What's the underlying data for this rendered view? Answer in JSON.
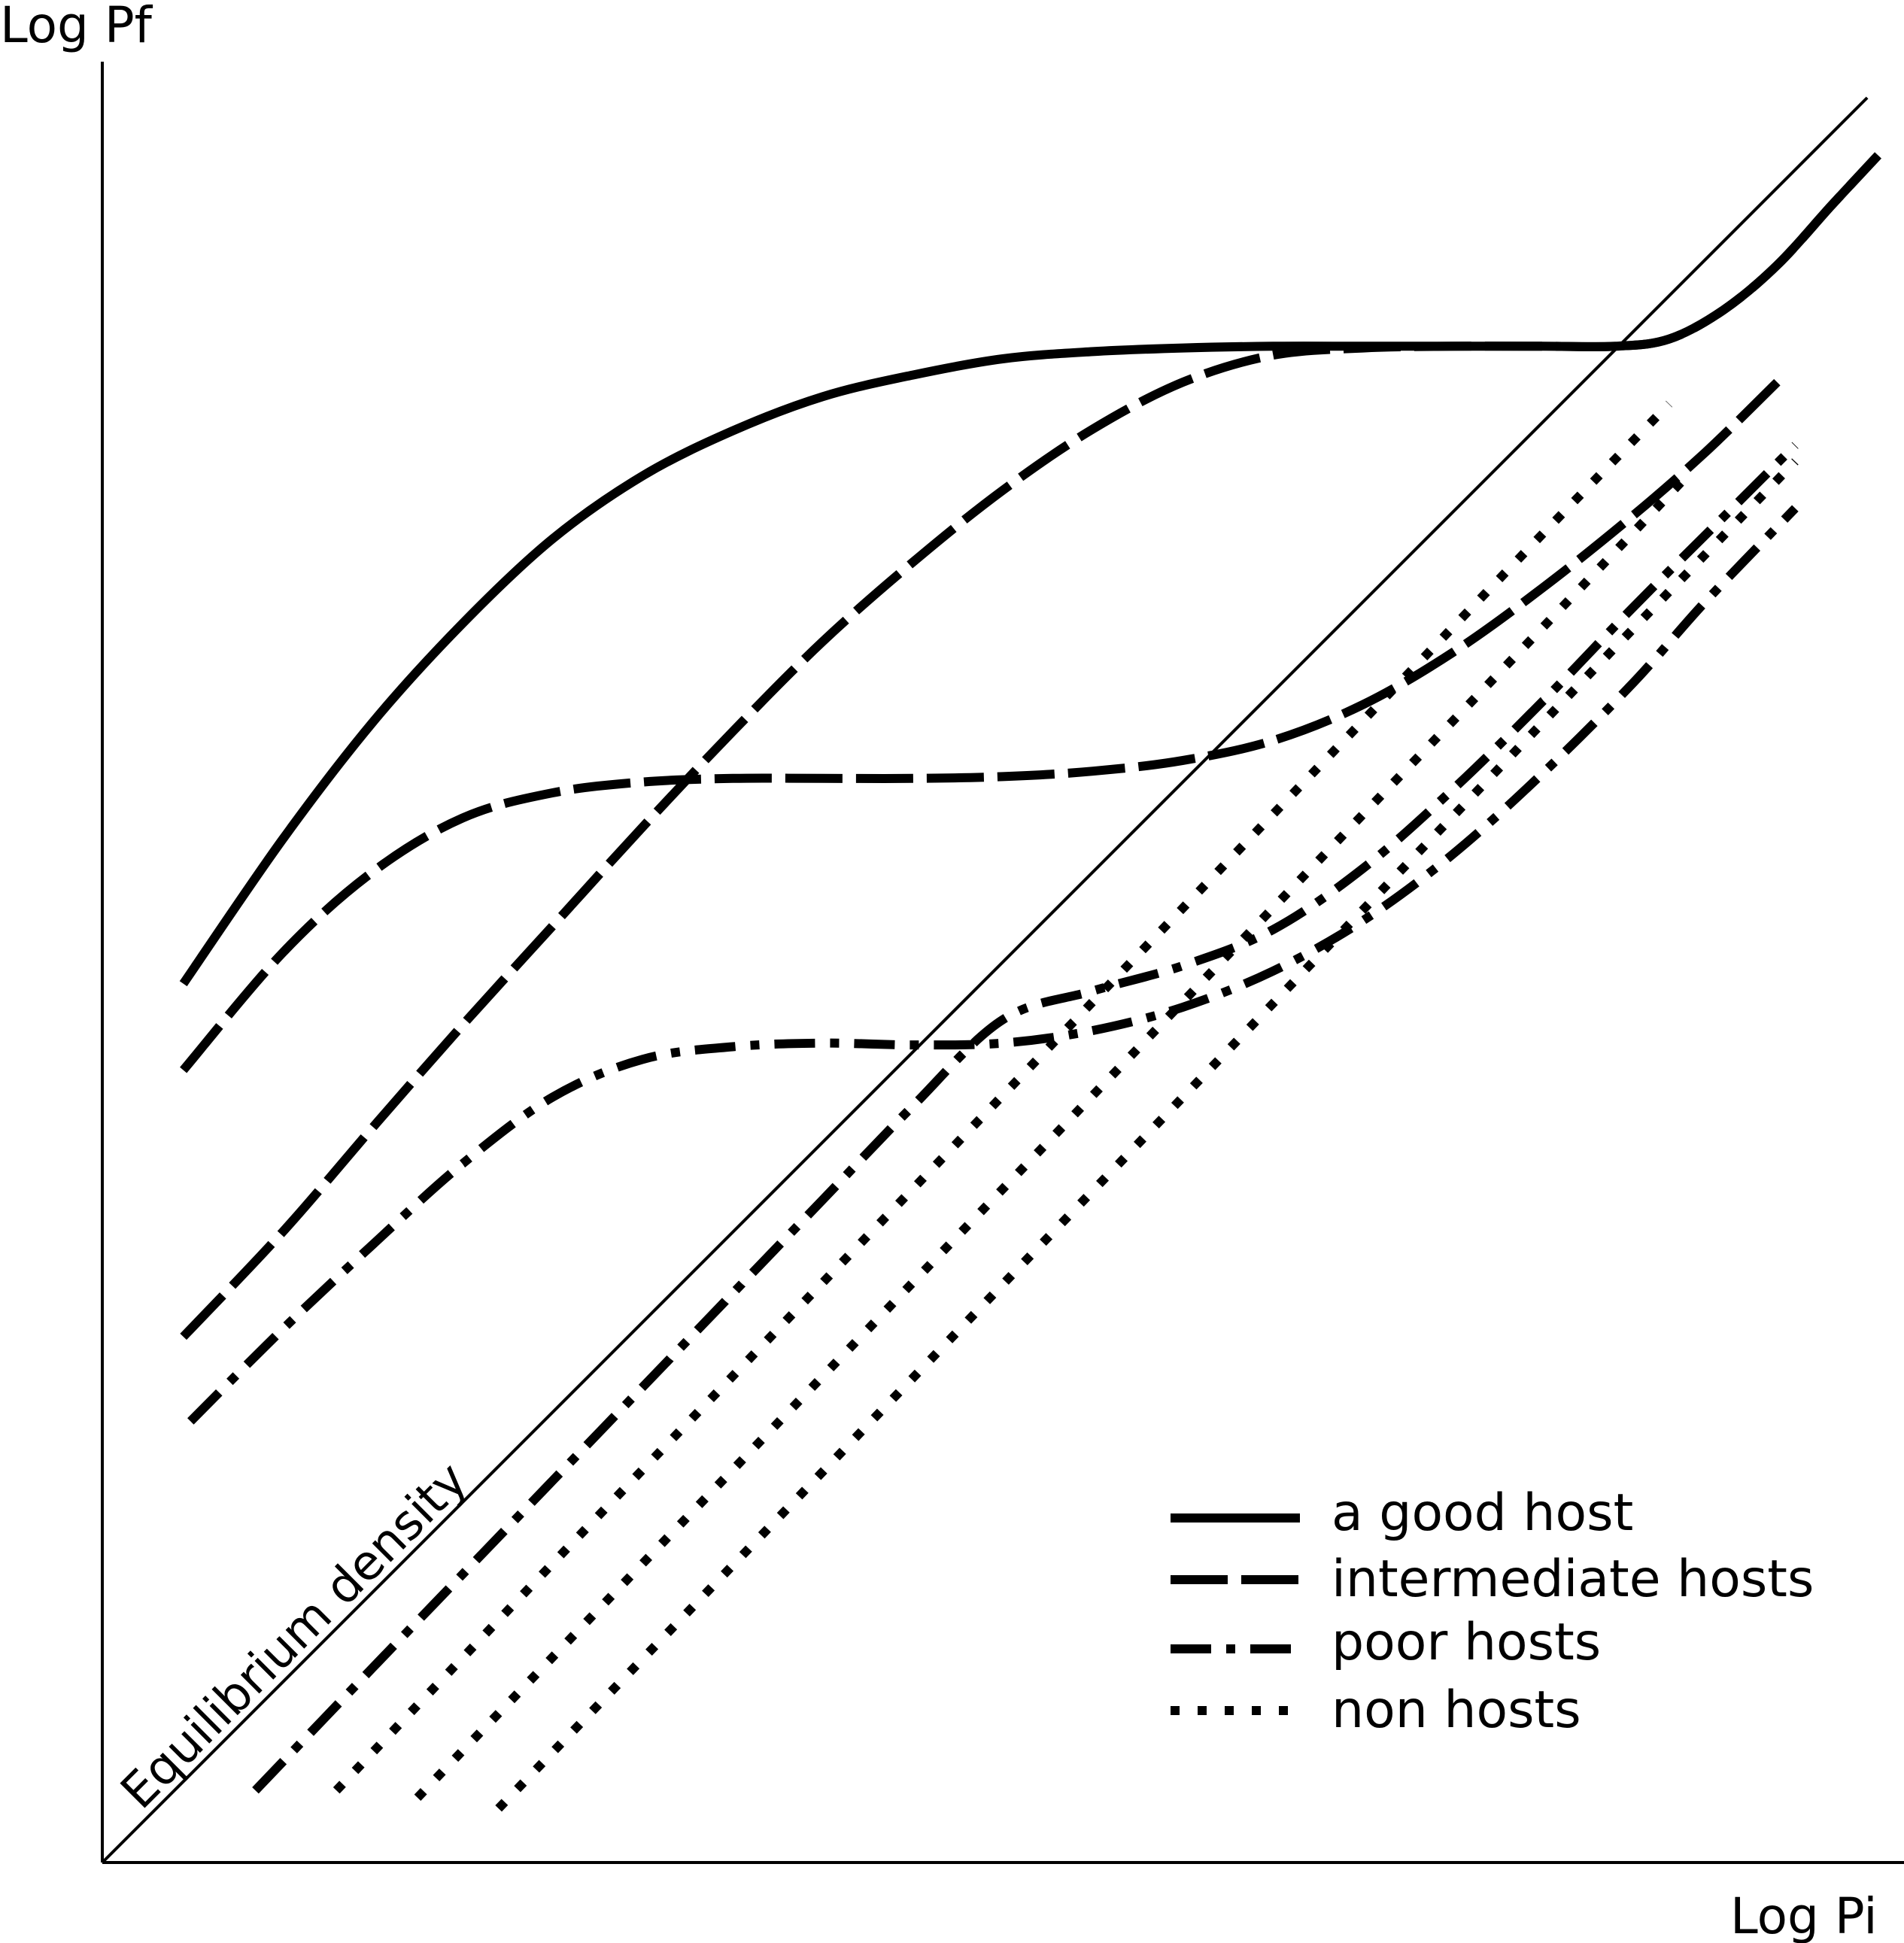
{
  "chart_data": {
    "type": "line",
    "title": "",
    "xlabel": "Log Pi",
    "ylabel": "Log Pf",
    "grid": false,
    "legend_placement": "bottom-right",
    "equilibrium_label": "Equilibrium density",
    "series": [
      {
        "name": "a good host",
        "style": "solid",
        "curves": [
          [
            [
              0.045,
              0.488
            ],
            [
              0.1,
              0.568
            ],
            [
              0.15,
              0.633
            ],
            [
              0.2,
              0.688
            ],
            [
              0.25,
              0.735
            ],
            [
              0.3,
              0.77
            ],
            [
              0.35,
              0.795
            ],
            [
              0.4,
              0.814
            ],
            [
              0.45,
              0.826
            ],
            [
              0.5,
              0.835
            ],
            [
              0.55,
              0.839
            ],
            [
              0.6,
              0.841
            ],
            [
              0.65,
              0.842
            ],
            [
              0.7,
              0.842
            ],
            [
              0.75,
              0.842
            ],
            [
              0.8,
              0.842
            ],
            [
              0.84,
              0.842
            ],
            [
              0.87,
              0.846
            ],
            [
              0.9,
              0.862
            ],
            [
              0.93,
              0.887
            ],
            [
              0.96,
              0.92
            ],
            [
              0.986,
              0.948
            ]
          ]
        ]
      },
      {
        "name": "intermediate hosts",
        "style": "long-dash",
        "curves": [
          [
            [
              0.045,
              0.292
            ],
            [
              0.1,
              0.35
            ],
            [
              0.15,
              0.408
            ],
            [
              0.2,
              0.465
            ],
            [
              0.25,
              0.52
            ],
            [
              0.3,
              0.575
            ],
            [
              0.35,
              0.628
            ],
            [
              0.4,
              0.678
            ],
            [
              0.45,
              0.722
            ],
            [
              0.5,
              0.762
            ],
            [
              0.55,
              0.796
            ],
            [
              0.6,
              0.822
            ],
            [
              0.65,
              0.837
            ],
            [
              0.7,
              0.841
            ],
            [
              0.75,
              0.842
            ],
            [
              0.8,
              0.842
            ],
            [
              0.84,
              0.842
            ],
            [
              0.87,
              0.846
            ],
            [
              0.9,
              0.862
            ],
            [
              0.93,
              0.887
            ],
            [
              0.96,
              0.92
            ],
            [
              0.986,
              0.948
            ]
          ],
          [
            [
              0.045,
              0.44
            ],
            [
              0.1,
              0.505
            ],
            [
              0.15,
              0.55
            ],
            [
              0.2,
              0.58
            ],
            [
              0.25,
              0.594
            ],
            [
              0.3,
              0.6
            ],
            [
              0.35,
              0.602
            ],
            [
              0.4,
              0.602
            ],
            [
              0.45,
              0.602
            ],
            [
              0.5,
              0.603
            ],
            [
              0.55,
              0.606
            ],
            [
              0.6,
              0.612
            ],
            [
              0.65,
              0.623
            ],
            [
              0.7,
              0.643
            ],
            [
              0.75,
              0.672
            ],
            [
              0.8,
              0.708
            ],
            [
              0.85,
              0.748
            ],
            [
              0.89,
              0.783
            ],
            [
              0.93,
              0.822
            ]
          ]
        ]
      },
      {
        "name": "poor hosts",
        "style": "dash-dot",
        "curves": [
          [
            [
              0.049,
              0.245
            ],
            [
              0.1,
              0.296
            ],
            [
              0.15,
              0.343
            ],
            [
              0.2,
              0.388
            ],
            [
              0.25,
              0.425
            ],
            [
              0.3,
              0.446
            ],
            [
              0.35,
              0.453
            ],
            [
              0.4,
              0.455
            ],
            [
              0.45,
              0.454
            ],
            [
              0.5,
              0.455
            ],
            [
              0.55,
              0.462
            ],
            [
              0.6,
              0.475
            ],
            [
              0.65,
              0.495
            ],
            [
              0.7,
              0.523
            ],
            [
              0.75,
              0.56
            ],
            [
              0.8,
              0.605
            ],
            [
              0.85,
              0.655
            ],
            [
              0.89,
              0.7
            ],
            [
              0.94,
              0.752
            ]
          ],
          [
            [
              0.085,
              0.04
            ],
            [
              0.15,
              0.108
            ],
            [
              0.2,
              0.16
            ],
            [
              0.25,
              0.212
            ],
            [
              0.3,
              0.264
            ],
            [
              0.35,
              0.316
            ],
            [
              0.4,
              0.368
            ],
            [
              0.45,
              0.42
            ],
            [
              0.5,
              0.468
            ],
            [
              0.55,
              0.484
            ],
            [
              0.6,
              0.498
            ],
            [
              0.65,
              0.518
            ],
            [
              0.7,
              0.552
            ],
            [
              0.75,
              0.596
            ],
            [
              0.8,
              0.645
            ],
            [
              0.85,
              0.697
            ],
            [
              0.9,
              0.747
            ],
            [
              0.94,
              0.787
            ]
          ]
        ]
      },
      {
        "name": "non hosts",
        "style": "dotted",
        "curves": [
          [
            [
              0.13,
              0.04
            ],
            [
              0.25,
              0.166
            ],
            [
              0.4,
              0.322
            ],
            [
              0.55,
              0.478
            ],
            [
              0.7,
              0.634
            ],
            [
              0.8,
              0.738
            ],
            [
              0.87,
              0.81
            ]
          ],
          [
            [
              0.175,
              0.036
            ],
            [
              0.3,
              0.166
            ],
            [
              0.45,
              0.322
            ],
            [
              0.6,
              0.478
            ],
            [
              0.7,
              0.582
            ],
            [
              0.8,
              0.686
            ],
            [
              0.88,
              0.77
            ]
          ],
          [
            [
              0.22,
              0.03
            ],
            [
              0.35,
              0.165
            ],
            [
              0.5,
              0.321
            ],
            [
              0.65,
              0.477
            ],
            [
              0.75,
              0.581
            ],
            [
              0.82,
              0.654
            ],
            [
              0.88,
              0.716
            ],
            [
              0.94,
              0.778
            ]
          ]
        ]
      }
    ],
    "reference_line": {
      "name": "Equilibrium density",
      "style": "thin-solid",
      "points": [
        [
          0.0,
          0.0
        ],
        [
          0.98,
          0.98
        ]
      ]
    }
  }
}
